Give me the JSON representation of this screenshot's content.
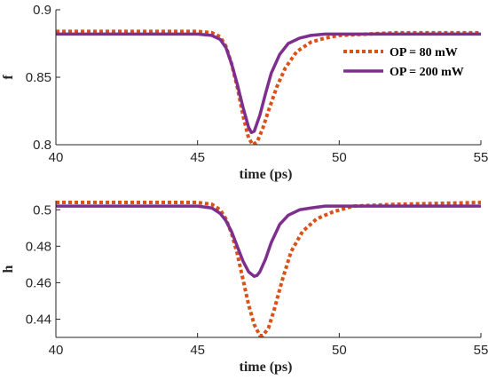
{
  "chart_data": [
    {
      "type": "line",
      "title": "",
      "xlabel": "time (ps)",
      "ylabel": "f",
      "xlim": [
        40,
        55
      ],
      "ylim": [
        0.8,
        0.9
      ],
      "xticks": [
        "40",
        "45",
        "50",
        "55"
      ],
      "yticks": [
        "0.8",
        "0.85",
        "0.9"
      ],
      "grid": false,
      "legend": "top-right",
      "series": [
        {
          "name": "OP = 80 mW",
          "style": "dotted",
          "color": "#d95319",
          "x": [
            40,
            44,
            45,
            45.5,
            45.8,
            46,
            46.2,
            46.4,
            46.6,
            46.8,
            46.95,
            47.1,
            47.3,
            47.5,
            47.8,
            48.1,
            48.5,
            49,
            49.5,
            50,
            51,
            52,
            55
          ],
          "y": [
            0.884,
            0.884,
            0.884,
            0.883,
            0.88,
            0.873,
            0.86,
            0.843,
            0.822,
            0.805,
            0.8,
            0.802,
            0.812,
            0.825,
            0.843,
            0.857,
            0.869,
            0.876,
            0.879,
            0.881,
            0.882,
            0.883,
            0.883
          ]
        },
        {
          "name": "OP = 200 mW",
          "style": "solid",
          "color": "#7e2f8e",
          "x": [
            40,
            44,
            45,
            45.5,
            45.8,
            46,
            46.2,
            46.4,
            46.6,
            46.8,
            46.9,
            47,
            47.2,
            47.4,
            47.6,
            47.9,
            48.2,
            48.6,
            49,
            49.5,
            50,
            52,
            55
          ],
          "y": [
            0.882,
            0.882,
            0.882,
            0.881,
            0.878,
            0.872,
            0.86,
            0.845,
            0.828,
            0.813,
            0.809,
            0.81,
            0.822,
            0.838,
            0.853,
            0.867,
            0.875,
            0.879,
            0.881,
            0.882,
            0.882,
            0.882,
            0.882
          ]
        }
      ]
    },
    {
      "type": "line",
      "title": "",
      "xlabel": "time (ps)",
      "ylabel": "h",
      "xlim": [
        40,
        55
      ],
      "ylim": [
        0.43,
        0.505
      ],
      "xticks": [
        "40",
        "45",
        "50",
        "55"
      ],
      "yticks": [
        "0.44",
        "0.46",
        "0.48",
        "0.5"
      ],
      "grid": false,
      "series": [
        {
          "name": "OP = 80 mW",
          "style": "dotted",
          "color": "#d95319",
          "x": [
            40,
            44,
            45,
            45.5,
            45.8,
            46,
            46.2,
            46.4,
            46.6,
            46.8,
            47,
            47.2,
            47.3,
            47.5,
            47.7,
            48,
            48.3,
            48.7,
            49.2,
            49.8,
            50.5,
            52,
            55
          ],
          "y": [
            0.504,
            0.504,
            0.504,
            0.503,
            0.5,
            0.495,
            0.487,
            0.476,
            0.462,
            0.448,
            0.437,
            0.431,
            0.431,
            0.435,
            0.445,
            0.462,
            0.477,
            0.488,
            0.495,
            0.499,
            0.502,
            0.503,
            0.504
          ]
        },
        {
          "name": "OP = 200 mW",
          "style": "solid",
          "color": "#7e2f8e",
          "x": [
            40,
            44,
            45,
            45.5,
            45.8,
            46,
            46.2,
            46.4,
            46.6,
            46.8,
            47,
            47.1,
            47.2,
            47.4,
            47.6,
            47.9,
            48.2,
            48.6,
            49,
            49.5,
            50,
            52,
            55
          ],
          "y": [
            0.502,
            0.502,
            0.502,
            0.501,
            0.498,
            0.494,
            0.488,
            0.48,
            0.472,
            0.466,
            0.4635,
            0.464,
            0.466,
            0.473,
            0.482,
            0.492,
            0.497,
            0.5,
            0.501,
            0.502,
            0.502,
            0.502,
            0.502
          ]
        }
      ]
    }
  ]
}
